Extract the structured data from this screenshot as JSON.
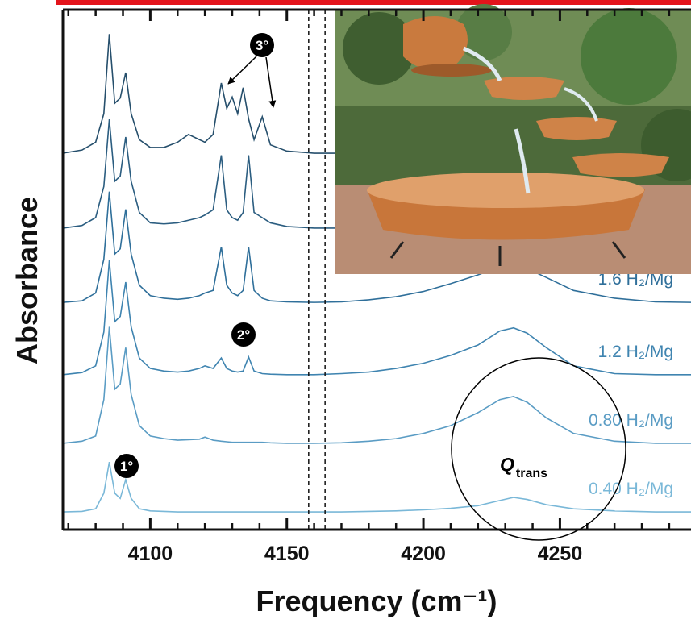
{
  "chart_data": {
    "type": "line",
    "xlabel": "Frequency (cm⁻¹)",
    "ylabel": "Absorbance",
    "xlim": [
      4068,
      4298
    ],
    "ylim": [
      0,
      100
    ],
    "xticks": [
      4100,
      4150,
      4200,
      4250
    ],
    "xminorticks": [
      4070,
      4080,
      4090,
      4110,
      4120,
      4130,
      4140,
      4160,
      4170,
      4180,
      4190,
      4210,
      4220,
      4230,
      4240,
      4260,
      4270,
      4280,
      4290
    ],
    "vlines": [
      4158,
      4164
    ],
    "x": [
      4068,
      4075,
      4080,
      4083,
      4085,
      4087,
      4089,
      4091,
      4093,
      4096,
      4100,
      4105,
      4110,
      4114,
      4118,
      4120,
      4123,
      4126,
      4128,
      4130,
      4132,
      4134,
      4136,
      4138,
      4141,
      4144,
      4150,
      4160,
      4170,
      4180,
      4190,
      4200,
      4210,
      4220,
      4228,
      4233,
      4238,
      4245,
      4255,
      4270,
      4285,
      4298
    ],
    "series": [
      {
        "name": "0.40 H₂/Mg",
        "color": "#7ab8d8",
        "values": [
          3.4,
          3.5,
          4,
          7,
          13,
          7,
          6,
          9.6,
          6,
          4,
          3.6,
          3.5,
          3.4,
          3.4,
          3.4,
          3.4,
          3.4,
          3.4,
          3.4,
          3.4,
          3.4,
          3.4,
          3.4,
          3.4,
          3.4,
          3.4,
          3.4,
          3.4,
          3.4,
          3.5,
          3.6,
          3.8,
          4.1,
          4.6,
          5.6,
          6.2,
          5.8,
          4.8,
          4,
          3.6,
          3.4,
          3.4
        ]
      },
      {
        "name": "0.80 H₂/Mg",
        "color": "#5a9cc4",
        "values": [
          16.6,
          17,
          18,
          25,
          39,
          27,
          28,
          35,
          26,
          20,
          18,
          17.5,
          17.2,
          17.3,
          17.4,
          17.8,
          17.2,
          17,
          16.9,
          16.8,
          16.8,
          16.8,
          16.8,
          16.8,
          16.8,
          16.7,
          16.6,
          16.6,
          16.7,
          17,
          17.5,
          18.5,
          20,
          22.5,
          25,
          25.6,
          24.5,
          21.5,
          18.5,
          17,
          16.6,
          16.6
        ]
      },
      {
        "name": "1.2 H₂/Mg",
        "color": "#3f84b0",
        "values": [
          29.8,
          30.2,
          31.5,
          38,
          51.8,
          40,
          41,
          47.6,
          39,
          33,
          31,
          30.5,
          30.3,
          30.5,
          31,
          31.5,
          31,
          33,
          31,
          30.5,
          30.3,
          30.5,
          33.2,
          30.5,
          30,
          29.9,
          29.8,
          29.8,
          30,
          30.3,
          31,
          32,
          33.5,
          35.5,
          38.2,
          38.8,
          37.8,
          35,
          31.5,
          30,
          29.8,
          29.8
        ]
      },
      {
        "name": "1.6 H₂/Mg",
        "color": "#2f6f9a",
        "values": [
          43.7,
          44,
          45.5,
          52,
          65,
          53,
          54,
          61.6,
          53,
          47,
          45,
          44.5,
          44.3,
          44.5,
          45,
          45.5,
          46,
          54.4,
          47,
          45.5,
          45,
          46,
          54.4,
          46,
          44.5,
          44,
          43.8,
          43.7,
          43.8,
          44.2,
          44.8,
          45.8,
          47.3,
          49,
          50.5,
          50.7,
          50.2,
          48.5,
          46,
          44.5,
          43.8,
          43.7
        ]
      },
      {
        "color": "#2b5d80",
        "values": [
          58,
          58.5,
          60,
          66,
          78.9,
          67,
          68,
          75.5,
          67,
          61,
          59,
          58.8,
          59,
          59.5,
          60,
          60.5,
          61.5,
          72,
          61.5,
          60,
          59.5,
          61,
          72,
          61,
          60,
          59,
          58.3,
          58,
          58,
          58,
          58,
          58,
          58,
          58,
          58,
          58,
          58,
          58,
          58,
          58,
          58,
          58
        ]
      },
      {
        "color": "#264f6c",
        "values": [
          72.4,
          73,
          74.5,
          80,
          95.3,
          82,
          83,
          87.9,
          80,
          75,
          73.5,
          73.5,
          74.5,
          76,
          75,
          74.5,
          76,
          85.9,
          81,
          83.2,
          80,
          85,
          79,
          75,
          79.4,
          74,
          72.8,
          72.4,
          72.4,
          72.4,
          72.4,
          72.4,
          72.4,
          72.4,
          72.4,
          72.4,
          72.4,
          72.4,
          72.4,
          72.4,
          72.4,
          72.4
        ]
      }
    ],
    "annotations": [
      "3°",
      "2°",
      "1°"
    ],
    "peak_label": {
      "text": "Q",
      "subscript": "trans"
    }
  }
}
